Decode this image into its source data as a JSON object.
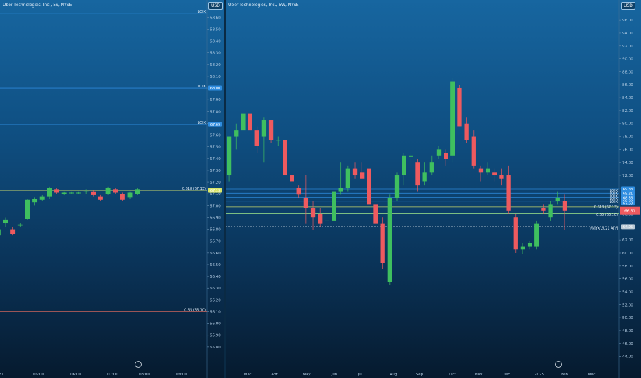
{
  "left_chart": {
    "title": "Uber Technologies, Inc., 5S, NYSE",
    "currency": "USD",
    "x_tick_labels": [
      "31",
      "05:00",
      "06:00",
      "07:00",
      "08:00",
      "09:00"
    ],
    "y_ticks": [
      65.8,
      65.9,
      66.0,
      66.1,
      66.2,
      66.3,
      66.4,
      66.5,
      66.6,
      66.7,
      66.8,
      66.9,
      67.0,
      67.1,
      67.2,
      67.3,
      67.4,
      67.5,
      67.6,
      67.7,
      67.8,
      67.9,
      68.0,
      68.1,
      68.2,
      68.3,
      68.4,
      68.5,
      68.6
    ],
    "ylim": [
      65.7,
      68.66
    ],
    "levels": [
      {
        "label": "LOIX",
        "value": 68.63,
        "tag": "",
        "color": "#2f8de0"
      },
      {
        "label": "LOIX",
        "value": 68.0,
        "tag": "68.00",
        "color": "#2f8de0"
      },
      {
        "label": "LOIX",
        "value": 67.69,
        "tag": "67.69",
        "color": "#2f8de0"
      },
      {
        "label": "0.618 (67.13)",
        "value": 67.13,
        "tag": "67.13",
        "color": "#d9e56a"
      },
      {
        "label": "0.65 (66.10)",
        "value": 66.1,
        "tag": "",
        "color": "#e06b5e"
      }
    ],
    "candles": [
      {
        "o": 66.75,
        "h": 66.8,
        "l": 66.6,
        "c": 66.8
      },
      {
        "o": 66.85,
        "h": 66.9,
        "l": 66.82,
        "c": 66.88
      },
      {
        "o": 66.8,
        "h": 66.82,
        "l": 66.75,
        "c": 66.76
      },
      {
        "o": 66.83,
        "h": 66.85,
        "l": 66.82,
        "c": 66.84
      },
      {
        "o": 66.89,
        "h": 67.06,
        "l": 66.88,
        "c": 67.05
      },
      {
        "o": 67.03,
        "h": 67.07,
        "l": 67.0,
        "c": 67.06
      },
      {
        "o": 67.05,
        "h": 67.09,
        "l": 67.04,
        "c": 67.08
      },
      {
        "o": 67.08,
        "h": 67.16,
        "l": 67.06,
        "c": 67.15
      },
      {
        "o": 67.14,
        "h": 67.15,
        "l": 67.1,
        "c": 67.11
      },
      {
        "o": 67.1,
        "h": 67.12,
        "l": 67.09,
        "c": 67.11
      },
      {
        "o": 67.11,
        "h": 67.12,
        "l": 67.1,
        "c": 67.11
      },
      {
        "o": 67.11,
        "h": 67.12,
        "l": 67.1,
        "c": 67.11
      },
      {
        "o": 67.12,
        "h": 67.14,
        "l": 67.1,
        "c": 67.12
      },
      {
        "o": 67.12,
        "h": 67.13,
        "l": 67.08,
        "c": 67.09
      },
      {
        "o": 67.08,
        "h": 67.09,
        "l": 67.04,
        "c": 67.05
      },
      {
        "o": 67.1,
        "h": 67.16,
        "l": 67.09,
        "c": 67.15
      },
      {
        "o": 67.14,
        "h": 67.15,
        "l": 67.1,
        "c": 67.11
      },
      {
        "o": 67.1,
        "h": 67.11,
        "l": 67.04,
        "c": 67.05
      },
      {
        "o": 67.07,
        "h": 67.12,
        "l": 67.06,
        "c": 67.11
      },
      {
        "o": 67.1,
        "h": 67.15,
        "l": 67.09,
        "c": 67.14
      }
    ]
  },
  "right_chart": {
    "title": "Uber Technologies, Inc., 5W, NYSE",
    "currency": "USD",
    "x_tick_labels": [
      "Mar",
      "Apr",
      "May",
      "Jun",
      "Jul",
      "Aug",
      "Sep",
      "Oct",
      "Nov",
      "Dec",
      "2025",
      "Feb",
      "Mar"
    ],
    "y_ticks": [
      44,
      46,
      48,
      50,
      52,
      54,
      56,
      58,
      60,
      62,
      64,
      66,
      68,
      70,
      72,
      74,
      76,
      78,
      80,
      82,
      84,
      86,
      88,
      90,
      92,
      94,
      96
    ],
    "ylim": [
      43,
      97.5
    ],
    "levels": [
      {
        "label": "LOIX",
        "value": 69.88,
        "tag": "69.88",
        "color": "#2f8de0"
      },
      {
        "label": "LOIX",
        "value": 69.21,
        "tag": "69.21",
        "color": "#2f8de0"
      },
      {
        "label": "LOIX",
        "value": 68.56,
        "tag": "68.56",
        "color": "#2f8de0"
      },
      {
        "label": "LOIX",
        "value": 68.0,
        "tag": "68.00",
        "color": "#2f8de0"
      },
      {
        "label": "LOIX",
        "value": 67.69,
        "tag": "67.69",
        "color": "#2f8de0"
      },
      {
        "label": "0.618 (67.13)",
        "value": 67.13,
        "tag": "",
        "color": "#d9e56a"
      },
      {
        "label": "0.65 (66.10)",
        "value": 66.1,
        "tag": "",
        "color": "#9be08a"
      },
      {
        "label": "PPIYX 2021 ATH",
        "value": 64.05,
        "tag": "64.05",
        "color": "#b9c9d6"
      }
    ],
    "current_price_tag": "66.51",
    "candles": [
      {
        "o": 72,
        "h": 78,
        "l": 71,
        "c": 78
      },
      {
        "o": 78,
        "h": 80,
        "l": 76,
        "c": 79
      },
      {
        "o": 79,
        "h": 81.5,
        "l": 78,
        "c": 81.5
      },
      {
        "o": 81.5,
        "h": 82.5,
        "l": 79,
        "c": 79
      },
      {
        "o": 79,
        "h": 79.5,
        "l": 75.5,
        "c": 76.5
      },
      {
        "o": 78,
        "h": 81,
        "l": 74,
        "c": 80.5
      },
      {
        "o": 80.5,
        "h": 80.5,
        "l": 77,
        "c": 77.5
      },
      {
        "o": 77.5,
        "h": 78,
        "l": 76.5,
        "c": 77.5
      },
      {
        "o": 77.5,
        "h": 78.5,
        "l": 71,
        "c": 72
      },
      {
        "o": 72,
        "h": 74.5,
        "l": 69,
        "c": 71
      },
      {
        "o": 70,
        "h": 70.5,
        "l": 68.5,
        "c": 69
      },
      {
        "o": 68.5,
        "h": 72,
        "l": 64.5,
        "c": 67
      },
      {
        "o": 67,
        "h": 68,
        "l": 63.5,
        "c": 65.5
      },
      {
        "o": 66,
        "h": 67,
        "l": 64,
        "c": 64.5
      },
      {
        "o": 65,
        "h": 65.5,
        "l": 63.5,
        "c": 65
      },
      {
        "o": 65,
        "h": 70,
        "l": 64.5,
        "c": 69.5
      },
      {
        "o": 69.5,
        "h": 74,
        "l": 69,
        "c": 70
      },
      {
        "o": 70,
        "h": 73.5,
        "l": 69.5,
        "c": 73
      },
      {
        "o": 73,
        "h": 74,
        "l": 71.5,
        "c": 72
      },
      {
        "o": 72.5,
        "h": 74,
        "l": 71.5,
        "c": 71.5
      },
      {
        "o": 73,
        "h": 75.5,
        "l": 67,
        "c": 67.5
      },
      {
        "o": 67.5,
        "h": 68,
        "l": 64,
        "c": 64.5
      },
      {
        "o": 64.5,
        "h": 65.5,
        "l": 57.5,
        "c": 58.5
      },
      {
        "o": 55.5,
        "h": 69,
        "l": 55,
        "c": 68.5
      },
      {
        "o": 68.5,
        "h": 72.5,
        "l": 68,
        "c": 72
      },
      {
        "o": 72,
        "h": 75.5,
        "l": 70.5,
        "c": 75
      },
      {
        "o": 75,
        "h": 75.5,
        "l": 73.5,
        "c": 75
      },
      {
        "o": 74,
        "h": 74.5,
        "l": 69.5,
        "c": 70.5
      },
      {
        "o": 71,
        "h": 74,
        "l": 70.5,
        "c": 72.5
      },
      {
        "o": 72.5,
        "h": 75,
        "l": 72,
        "c": 74
      },
      {
        "o": 75,
        "h": 76.5,
        "l": 74.5,
        "c": 76
      },
      {
        "o": 75.5,
        "h": 76,
        "l": 73.5,
        "c": 74.5
      },
      {
        "o": 75,
        "h": 87,
        "l": 74,
        "c": 86.5
      },
      {
        "o": 85.5,
        "h": 86,
        "l": 79.5,
        "c": 79.5
      },
      {
        "o": 80,
        "h": 81,
        "l": 77,
        "c": 77.5
      },
      {
        "o": 78,
        "h": 79,
        "l": 73,
        "c": 73.5
      },
      {
        "o": 73,
        "h": 73.5,
        "l": 71,
        "c": 72.5
      },
      {
        "o": 72.5,
        "h": 74,
        "l": 72,
        "c": 73
      },
      {
        "o": 72.5,
        "h": 73,
        "l": 71,
        "c": 72
      },
      {
        "o": 72,
        "h": 73,
        "l": 70.5,
        "c": 71.5
      },
      {
        "o": 72,
        "h": 73.5,
        "l": 66,
        "c": 66.5
      },
      {
        "o": 65.5,
        "h": 66,
        "l": 60,
        "c": 60.5
      },
      {
        "o": 60.5,
        "h": 61.5,
        "l": 59.8,
        "c": 61
      },
      {
        "o": 61,
        "h": 61.8,
        "l": 60.5,
        "c": 61.5
      },
      {
        "o": 61,
        "h": 65,
        "l": 60.5,
        "c": 64.5
      },
      {
        "o": 67,
        "h": 67.5,
        "l": 66,
        "c": 66.5
      },
      {
        "o": 65.5,
        "h": 68,
        "l": 65,
        "c": 67.5
      },
      {
        "o": 68,
        "h": 69.5,
        "l": 67.5,
        "c": 68.5
      },
      {
        "o": 68,
        "h": 69,
        "l": 63.5,
        "c": 66.5
      }
    ]
  }
}
